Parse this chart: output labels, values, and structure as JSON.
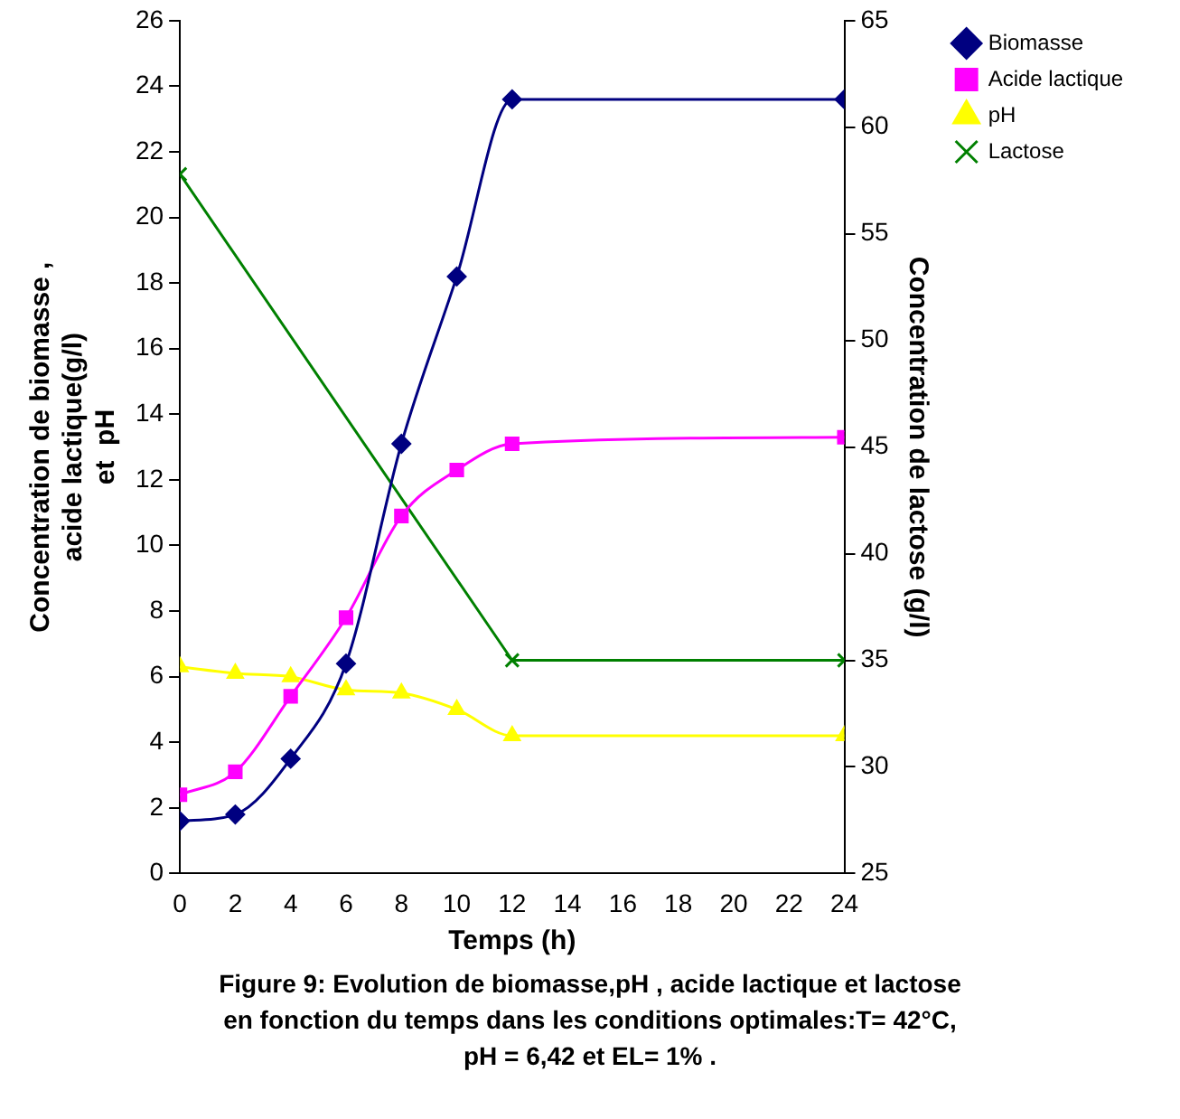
{
  "chart_data": {
    "type": "line",
    "xlabel": "Temps (h)",
    "ylabel": "Concentration de biomasse ,\nacide lactique(g/l)\net  pH",
    "y2label": "Concentration de lactose (g/l)",
    "x": [
      0,
      2,
      4,
      6,
      8,
      10,
      12,
      24
    ],
    "series": [
      {
        "name": "Biomasse",
        "color": "#000080",
        "marker": "diamond",
        "values": [
          1.6,
          1.8,
          3.5,
          6.4,
          13.1,
          18.2,
          23.6,
          23.6
        ]
      },
      {
        "name": "Acide lactique",
        "color": "#ff00ff",
        "marker": "square",
        "values": [
          2.4,
          3.1,
          5.4,
          7.8,
          10.9,
          12.3,
          13.1,
          13.3
        ]
      },
      {
        "name": "pH",
        "color": "#ffff00",
        "marker": "triangle",
        "values": [
          6.3,
          6.1,
          6.0,
          5.6,
          5.5,
          5.0,
          4.2,
          4.2
        ]
      },
      {
        "name": "Lactose",
        "color": "#008000",
        "marker": "cross",
        "axis": "y2",
        "x": [
          0,
          12,
          24
        ],
        "values": [
          57.8,
          35,
          35
        ]
      }
    ],
    "xlim": [
      0,
      24
    ],
    "xticks": [
      0,
      2,
      4,
      6,
      8,
      10,
      12,
      14,
      16,
      18,
      20,
      22,
      24
    ],
    "ylim": [
      0,
      26
    ],
    "yticks": [
      0,
      2,
      4,
      6,
      8,
      10,
      12,
      14,
      16,
      18,
      20,
      22,
      24,
      26
    ],
    "y2lim": [
      25,
      65
    ],
    "y2ticks": [
      25,
      30,
      35,
      40,
      45,
      50,
      55,
      60,
      65
    ],
    "grid": false,
    "legend": "top right",
    "annotations": [
      "Figure 9: Evolution de biomasse,pH , acide lactique et lactose\nen fonction du temps dans les conditions optimales:T= 42°C,\npH = 6,42 et EL= 1% ."
    ]
  }
}
